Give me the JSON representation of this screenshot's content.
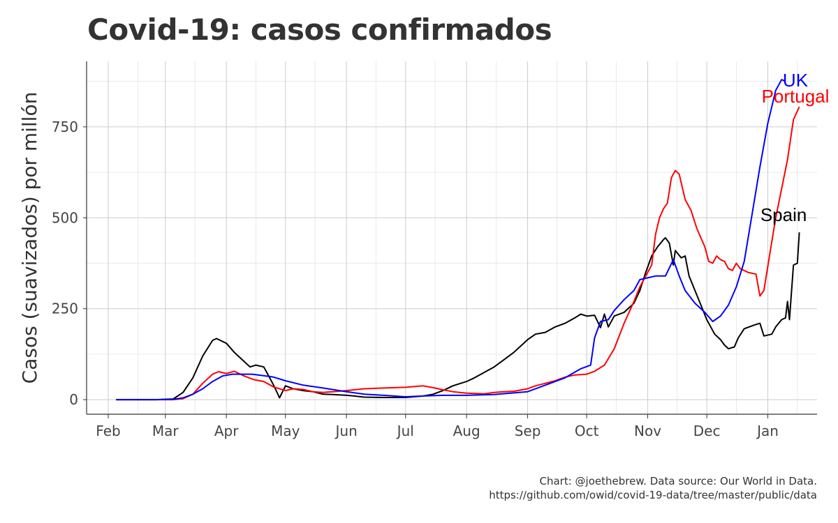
{
  "chart_data": {
    "type": "line",
    "title": "Covid-19: casos confirmados",
    "xlabel": "",
    "ylabel": "Casos (suavizados) por millón",
    "x_range": [
      "2020-01-21",
      "2021-01-26"
    ],
    "ylim": [
      -40,
      930
    ],
    "y_ticks": [
      0,
      250,
      500,
      750
    ],
    "x_ticks": [
      {
        "label": "Feb",
        "date": "2020-02-01"
      },
      {
        "label": "Mar",
        "date": "2020-03-01"
      },
      {
        "label": "Apr",
        "date": "2020-04-01"
      },
      {
        "label": "May",
        "date": "2020-05-01"
      },
      {
        "label": "Jun",
        "date": "2020-06-01"
      },
      {
        "label": "Jul",
        "date": "2020-07-01"
      },
      {
        "label": "Aug",
        "date": "2020-08-01"
      },
      {
        "label": "Sep",
        "date": "2020-09-01"
      },
      {
        "label": "Oct",
        "date": "2020-10-01"
      },
      {
        "label": "Nov",
        "date": "2020-11-01"
      },
      {
        "label": "Dec",
        "date": "2020-12-01"
      },
      {
        "label": "Jan",
        "date": "2021-01-01"
      }
    ],
    "grid": true,
    "series": [
      {
        "name": "Spain",
        "color": "#000000",
        "label_at": "2021-01-09",
        "points": [
          [
            "2020-02-05",
            0
          ],
          [
            "2020-02-25",
            0
          ],
          [
            "2020-03-05",
            2
          ],
          [
            "2020-03-10",
            20
          ],
          [
            "2020-03-15",
            60
          ],
          [
            "2020-03-20",
            120
          ],
          [
            "2020-03-25",
            163
          ],
          [
            "2020-03-27",
            168
          ],
          [
            "2020-04-01",
            155
          ],
          [
            "2020-04-05",
            130
          ],
          [
            "2020-04-10",
            105
          ],
          [
            "2020-04-13",
            90
          ],
          [
            "2020-04-16",
            95
          ],
          [
            "2020-04-20",
            90
          ],
          [
            "2020-04-22",
            70
          ],
          [
            "2020-04-25",
            40
          ],
          [
            "2020-04-28",
            5
          ],
          [
            "2020-05-01",
            38
          ],
          [
            "2020-05-05",
            30
          ],
          [
            "2020-05-10",
            25
          ],
          [
            "2020-05-15",
            22
          ],
          [
            "2020-05-20",
            15
          ],
          [
            "2020-05-25",
            14
          ],
          [
            "2020-06-01",
            12
          ],
          [
            "2020-06-05",
            10
          ],
          [
            "2020-06-10",
            7
          ],
          [
            "2020-06-20",
            6
          ],
          [
            "2020-07-01",
            6
          ],
          [
            "2020-07-10",
            10
          ],
          [
            "2020-07-15",
            15
          ],
          [
            "2020-07-20",
            25
          ],
          [
            "2020-07-25",
            38
          ],
          [
            "2020-08-01",
            50
          ],
          [
            "2020-08-05",
            60
          ],
          [
            "2020-08-10",
            75
          ],
          [
            "2020-08-15",
            90
          ],
          [
            "2020-08-20",
            110
          ],
          [
            "2020-08-25",
            130
          ],
          [
            "2020-09-01",
            165
          ],
          [
            "2020-09-05",
            180
          ],
          [
            "2020-09-10",
            185
          ],
          [
            "2020-09-15",
            200
          ],
          [
            "2020-09-20",
            210
          ],
          [
            "2020-09-25",
            225
          ],
          [
            "2020-09-28",
            235
          ],
          [
            "2020-10-01",
            230
          ],
          [
            "2020-10-05",
            232
          ],
          [
            "2020-10-08",
            198
          ],
          [
            "2020-10-10",
            235
          ],
          [
            "2020-10-12",
            200
          ],
          [
            "2020-10-15",
            230
          ],
          [
            "2020-10-20",
            240
          ],
          [
            "2020-10-25",
            265
          ],
          [
            "2020-10-28",
            300
          ],
          [
            "2020-10-31",
            350
          ],
          [
            "2020-11-03",
            395
          ],
          [
            "2020-11-06",
            420
          ],
          [
            "2020-11-09",
            440
          ],
          [
            "2020-11-10",
            445
          ],
          [
            "2020-11-12",
            430
          ],
          [
            "2020-11-14",
            370
          ],
          [
            "2020-11-15",
            410
          ],
          [
            "2020-11-18",
            390
          ],
          [
            "2020-11-20",
            395
          ],
          [
            "2020-11-22",
            340
          ],
          [
            "2020-11-25",
            300
          ],
          [
            "2020-11-28",
            260
          ],
          [
            "2020-12-01",
            220
          ],
          [
            "2020-12-05",
            180
          ],
          [
            "2020-12-08",
            165
          ],
          [
            "2020-12-10",
            150
          ],
          [
            "2020-12-12",
            140
          ],
          [
            "2020-12-15",
            145
          ],
          [
            "2020-12-17",
            170
          ],
          [
            "2020-12-20",
            195
          ],
          [
            "2020-12-25",
            205
          ],
          [
            "2020-12-28",
            210
          ],
          [
            "2020-12-30",
            175
          ],
          [
            "2021-01-03",
            180
          ],
          [
            "2021-01-05",
            200
          ],
          [
            "2021-01-08",
            220
          ],
          [
            "2021-01-10",
            225
          ],
          [
            "2021-01-11",
            270
          ],
          [
            "2021-01-12",
            220
          ],
          [
            "2021-01-14",
            370
          ],
          [
            "2021-01-16",
            375
          ],
          [
            "2021-01-17",
            460
          ]
        ]
      },
      {
        "name": "Portugal",
        "color": "#ff0000",
        "label_at": "2021-01-15",
        "points": [
          [
            "2020-02-05",
            0
          ],
          [
            "2020-02-25",
            0
          ],
          [
            "2020-03-05",
            0
          ],
          [
            "2020-03-10",
            3
          ],
          [
            "2020-03-15",
            15
          ],
          [
            "2020-03-20",
            45
          ],
          [
            "2020-03-25",
            70
          ],
          [
            "2020-03-28",
            77
          ],
          [
            "2020-04-01",
            72
          ],
          [
            "2020-04-05",
            78
          ],
          [
            "2020-04-10",
            65
          ],
          [
            "2020-04-15",
            55
          ],
          [
            "2020-04-20",
            50
          ],
          [
            "2020-04-25",
            35
          ],
          [
            "2020-05-01",
            25
          ],
          [
            "2020-05-05",
            30
          ],
          [
            "2020-05-10",
            28
          ],
          [
            "2020-05-15",
            22
          ],
          [
            "2020-05-20",
            20
          ],
          [
            "2020-05-25",
            22
          ],
          [
            "2020-06-01",
            25
          ],
          [
            "2020-06-10",
            30
          ],
          [
            "2020-06-20",
            32
          ],
          [
            "2020-07-01",
            34
          ],
          [
            "2020-07-10",
            38
          ],
          [
            "2020-07-15",
            33
          ],
          [
            "2020-07-20",
            27
          ],
          [
            "2020-07-25",
            22
          ],
          [
            "2020-08-01",
            18
          ],
          [
            "2020-08-10",
            16
          ],
          [
            "2020-08-15",
            20
          ],
          [
            "2020-08-20",
            22
          ],
          [
            "2020-08-25",
            23
          ],
          [
            "2020-09-01",
            30
          ],
          [
            "2020-09-05",
            38
          ],
          [
            "2020-09-10",
            45
          ],
          [
            "2020-09-15",
            52
          ],
          [
            "2020-09-20",
            62
          ],
          [
            "2020-09-25",
            68
          ],
          [
            "2020-10-01",
            70
          ],
          [
            "2020-10-05",
            78
          ],
          [
            "2020-10-10",
            95
          ],
          [
            "2020-10-15",
            140
          ],
          [
            "2020-10-20",
            210
          ],
          [
            "2020-10-25",
            270
          ],
          [
            "2020-10-28",
            310
          ],
          [
            "2020-11-01",
            350
          ],
          [
            "2020-11-03",
            370
          ],
          [
            "2020-11-05",
            455
          ],
          [
            "2020-11-07",
            500
          ],
          [
            "2020-11-09",
            525
          ],
          [
            "2020-11-11",
            540
          ],
          [
            "2020-11-13",
            610
          ],
          [
            "2020-11-15",
            630
          ],
          [
            "2020-11-17",
            620
          ],
          [
            "2020-11-20",
            550
          ],
          [
            "2020-11-23",
            520
          ],
          [
            "2020-11-26",
            470
          ],
          [
            "2020-11-30",
            420
          ],
          [
            "2020-12-02",
            380
          ],
          [
            "2020-12-04",
            375
          ],
          [
            "2020-12-06",
            395
          ],
          [
            "2020-12-08",
            385
          ],
          [
            "2020-12-10",
            380
          ],
          [
            "2020-12-12",
            360
          ],
          [
            "2020-12-14",
            355
          ],
          [
            "2020-12-16",
            375
          ],
          [
            "2020-12-18",
            360
          ],
          [
            "2020-12-22",
            350
          ],
          [
            "2020-12-26",
            345
          ],
          [
            "2020-12-28",
            285
          ],
          [
            "2020-12-30",
            300
          ],
          [
            "2021-01-02",
            400
          ],
          [
            "2021-01-05",
            500
          ],
          [
            "2021-01-08",
            580
          ],
          [
            "2021-01-11",
            660
          ],
          [
            "2021-01-14",
            770
          ],
          [
            "2021-01-17",
            805
          ]
        ]
      },
      {
        "name": "UK",
        "color": "#0000ff",
        "label_at": "2021-01-15",
        "points": [
          [
            "2020-02-05",
            0
          ],
          [
            "2020-02-25",
            0
          ],
          [
            "2020-03-05",
            1
          ],
          [
            "2020-03-10",
            5
          ],
          [
            "2020-03-15",
            15
          ],
          [
            "2020-03-20",
            30
          ],
          [
            "2020-03-25",
            50
          ],
          [
            "2020-03-30",
            65
          ],
          [
            "2020-04-04",
            70
          ],
          [
            "2020-04-09",
            70
          ],
          [
            "2020-04-14",
            70
          ],
          [
            "2020-04-20",
            66
          ],
          [
            "2020-04-25",
            62
          ],
          [
            "2020-05-01",
            52
          ],
          [
            "2020-05-10",
            40
          ],
          [
            "2020-05-20",
            32
          ],
          [
            "2020-06-01",
            22
          ],
          [
            "2020-06-10",
            15
          ],
          [
            "2020-06-20",
            12
          ],
          [
            "2020-07-01",
            8
          ],
          [
            "2020-07-10",
            10
          ],
          [
            "2020-07-20",
            12
          ],
          [
            "2020-08-01",
            12
          ],
          [
            "2020-08-15",
            14
          ],
          [
            "2020-09-01",
            22
          ],
          [
            "2020-09-10",
            40
          ],
          [
            "2020-09-20",
            60
          ],
          [
            "2020-09-28",
            85
          ],
          [
            "2020-10-03",
            95
          ],
          [
            "2020-10-05",
            170
          ],
          [
            "2020-10-08",
            215
          ],
          [
            "2020-10-12",
            220
          ],
          [
            "2020-10-15",
            245
          ],
          [
            "2020-10-20",
            275
          ],
          [
            "2020-10-25",
            300
          ],
          [
            "2020-10-28",
            330
          ],
          [
            "2020-11-01",
            335
          ],
          [
            "2020-11-05",
            340
          ],
          [
            "2020-11-10",
            340
          ],
          [
            "2020-11-14",
            385
          ],
          [
            "2020-11-17",
            340
          ],
          [
            "2020-11-20",
            300
          ],
          [
            "2020-11-25",
            265
          ],
          [
            "2020-11-30",
            240
          ],
          [
            "2020-12-04",
            215
          ],
          [
            "2020-12-08",
            230
          ],
          [
            "2020-12-12",
            260
          ],
          [
            "2020-12-16",
            310
          ],
          [
            "2020-12-20",
            380
          ],
          [
            "2020-12-24",
            510
          ],
          [
            "2020-12-28",
            640
          ],
          [
            "2021-01-01",
            760
          ],
          [
            "2021-01-05",
            850
          ],
          [
            "2021-01-08",
            880
          ],
          [
            "2021-01-10",
            875
          ]
        ]
      }
    ],
    "caption": [
      "Chart: @joethebrew. Data source: Our World in Data.",
      "https://github.com/owid/covid-19-data/tree/master/public/data"
    ]
  }
}
